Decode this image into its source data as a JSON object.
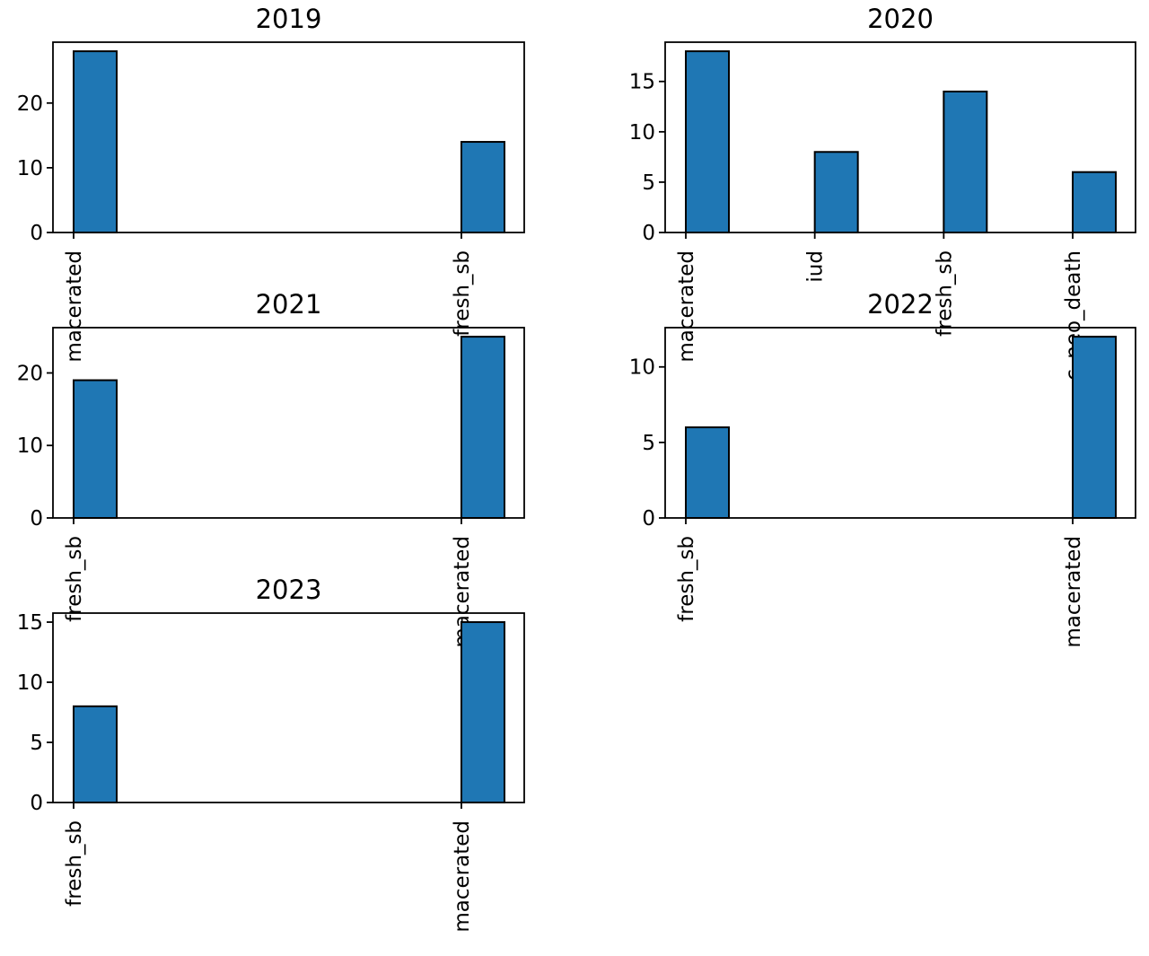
{
  "chart_data": [
    {
      "type": "bar",
      "title": "2019",
      "categories": [
        "macerated",
        "fresh_sb"
      ],
      "values": [
        28,
        14
      ],
      "ylim": [
        0,
        29.4
      ],
      "yticks": [
        0,
        10,
        20
      ],
      "bar_color": "#1f77b4",
      "grid": false
    },
    {
      "type": "bar",
      "title": "2020",
      "categories": [
        "macerated",
        "iud",
        "fresh_sb",
        "c_neo_death"
      ],
      "values": [
        18,
        8,
        14,
        6
      ],
      "ylim": [
        0,
        18.9
      ],
      "yticks": [
        0,
        5,
        10,
        15
      ],
      "bar_color": "#1f77b4",
      "grid": false
    },
    {
      "type": "bar",
      "title": "2021",
      "categories": [
        "fresh_sb",
        "macerated"
      ],
      "values": [
        19,
        25
      ],
      "ylim": [
        0,
        26.25
      ],
      "yticks": [
        0,
        10,
        20
      ],
      "bar_color": "#1f77b4",
      "grid": false
    },
    {
      "type": "bar",
      "title": "2022",
      "categories": [
        "fresh_sb",
        "macerated"
      ],
      "values": [
        6,
        12
      ],
      "ylim": [
        0,
        12.6
      ],
      "yticks": [
        0,
        5,
        10
      ],
      "bar_color": "#1f77b4",
      "grid": false
    },
    {
      "type": "bar",
      "title": "2023",
      "categories": [
        "fresh_sb",
        "macerated"
      ],
      "values": [
        8,
        15
      ],
      "ylim": [
        0,
        15.75
      ],
      "yticks": [
        0,
        5,
        10,
        15
      ],
      "bar_color": "#1f77b4",
      "grid": false
    }
  ]
}
